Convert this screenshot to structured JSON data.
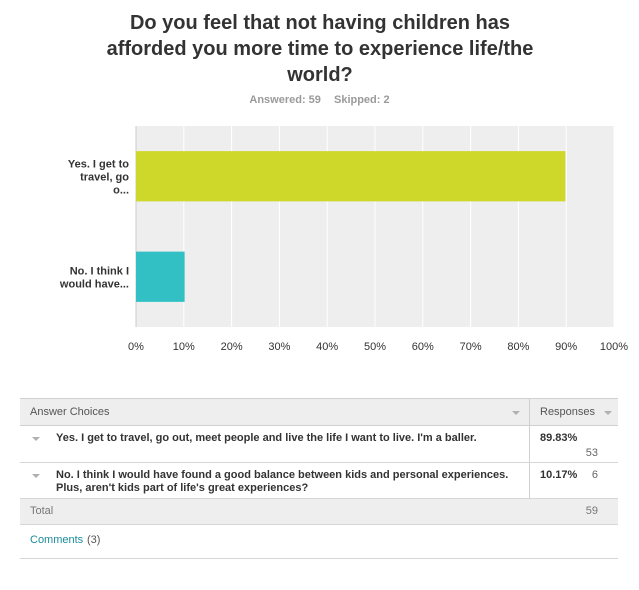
{
  "question": {
    "title": "Do you feel that not having children has afforded you more time to experience life/the world?",
    "answered": "Answered: 59",
    "skipped": "Skipped: 2"
  },
  "chart_data": {
    "type": "bar",
    "orientation": "horizontal",
    "categories": [
      "Yes. I get to travel, go o...",
      "No. I think I would have..."
    ],
    "values": [
      89.83,
      10.17
    ],
    "bar_colors": [
      "#cdd82a",
      "#32c0c4"
    ],
    "xlim": [
      0,
      100
    ],
    "xticks": [
      "0%",
      "10%",
      "20%",
      "30%",
      "40%",
      "50%",
      "60%",
      "70%",
      "80%",
      "90%",
      "100%"
    ],
    "grid": true,
    "plot_background": "#eeeeee",
    "grid_color": "#ffffff"
  },
  "table": {
    "header_choices": "Answer Choices",
    "header_responses": "Responses",
    "rows": [
      {
        "label": "Yes. I get to travel, go out, meet people and live the life I want to live. I'm a baller.",
        "percent": "89.83%",
        "count": "53"
      },
      {
        "label": "No. I think I would have found a good balance between kids and personal experiences. Plus, aren't kids part of life's great experiences?",
        "percent": "10.17%",
        "count": "6"
      }
    ],
    "total_label": "Total",
    "total_value": "59",
    "comments_label": "Comments",
    "comments_count": "(3)"
  },
  "colors": {
    "accent_link": "#1d8c99"
  }
}
